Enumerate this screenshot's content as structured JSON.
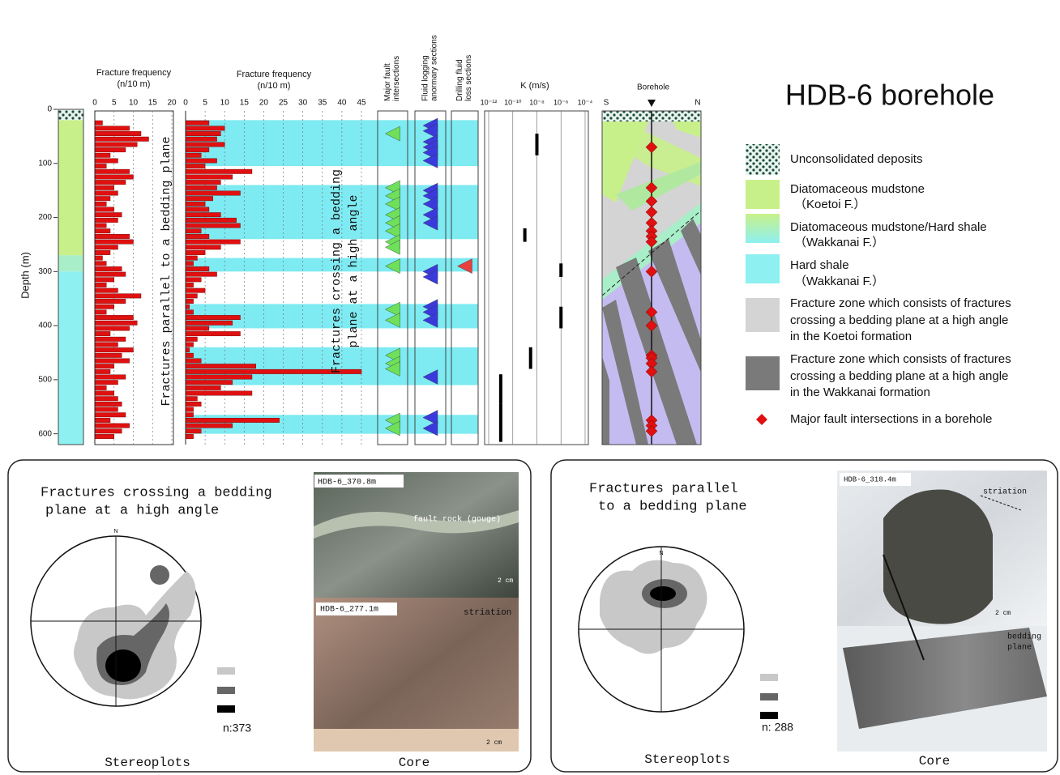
{
  "figure": {
    "title": "HDB-6 borehole",
    "depth_axis": {
      "label": "Depth (m)",
      "lim": [
        0,
        620
      ],
      "ticks": [
        0,
        100,
        200,
        300,
        400,
        500,
        600
      ]
    },
    "lithology": [
      {
        "top": 0,
        "bottom": 20,
        "color": "#2a6a5a"
      },
      {
        "top": 20,
        "bottom": 270,
        "color": "#c8f08a"
      },
      {
        "top": 270,
        "bottom": 300,
        "color": "#a8eec8"
      },
      {
        "top": 300,
        "bottom": 620,
        "color": "#8ef0f0"
      }
    ],
    "zones": {
      "color": "#7eeaf2",
      "ranges": [
        [
          20,
          105
        ],
        [
          140,
          240
        ],
        [
          275,
          300
        ],
        [
          360,
          405
        ],
        [
          440,
          510
        ],
        [
          565,
          600
        ]
      ]
    },
    "fracture_frequency": {
      "bins": [
        20,
        30,
        40,
        50,
        60,
        70,
        80,
        90,
        100,
        110,
        120,
        130,
        140,
        150,
        160,
        170,
        180,
        190,
        200,
        210,
        220,
        230,
        240,
        250,
        260,
        270,
        280,
        290,
        300,
        310,
        320,
        330,
        340,
        350,
        360,
        370,
        380,
        390,
        400,
        410,
        420,
        430,
        440,
        450,
        460,
        470,
        480,
        490,
        500,
        510,
        520,
        530,
        540,
        550,
        560,
        570,
        580,
        590,
        600,
        610
      ],
      "panels": [
        {
          "title": "Fracture frequency",
          "unit": "(n/10 m)",
          "xlim": [
            0,
            20
          ],
          "xticks": [
            0,
            5,
            10,
            15,
            20
          ],
          "color": "#e01010",
          "note": [
            "Fractures parallel to a bedding plane"
          ],
          "values": [
            2,
            9,
            12,
            14,
            11,
            8,
            4,
            6,
            3,
            9,
            10,
            8,
            5,
            6,
            4,
            3,
            5,
            7,
            6,
            3,
            4,
            9,
            10,
            6,
            4,
            2,
            3,
            7,
            8,
            5,
            3,
            6,
            12,
            8,
            5,
            3,
            10,
            11,
            9,
            4,
            8,
            6,
            10,
            7,
            9,
            5,
            4,
            8,
            6,
            3,
            5,
            6,
            7,
            6,
            8,
            4,
            9,
            7,
            5
          ]
        },
        {
          "title": "Fracture frequency",
          "unit": "(n/10 m)",
          "xlim": [
            0,
            45
          ],
          "xticks": [
            0,
            5,
            10,
            15,
            20,
            25,
            30,
            35,
            40,
            45
          ],
          "color": "#e01010",
          "note": [
            "Fractures crossing a bedding",
            "plane at a high angle"
          ],
          "values": [
            6,
            10,
            9,
            8,
            10,
            6,
            4,
            8,
            5,
            17,
            12,
            9,
            8,
            14,
            7,
            5,
            6,
            9,
            13,
            14,
            4,
            6,
            14,
            9,
            5,
            3,
            2,
            6,
            8,
            4,
            2,
            5,
            3,
            2,
            1,
            2,
            14,
            12,
            6,
            14,
            3,
            2,
            1,
            2,
            4,
            18,
            45,
            17,
            12,
            9,
            17,
            3,
            4,
            2,
            2,
            24,
            12,
            4,
            2
          ]
        }
      ]
    },
    "markers": [
      {
        "title": [
          "Major fault",
          "intersections"
        ],
        "color": "#6ee05a",
        "depths": [
          45,
          145,
          160,
          175,
          195,
          210,
          225,
          245,
          255,
          290,
          370,
          390,
          455,
          470,
          480,
          575,
          590
        ]
      },
      {
        "title": [
          "Fluid logging",
          "anormary sections"
        ],
        "color": "#3a3adc",
        "depths": [
          30,
          40,
          60,
          70,
          80,
          95,
          150,
          160,
          175,
          195,
          210,
          300,
          310,
          365,
          375,
          390,
          495,
          570,
          590
        ]
      },
      {
        "title": [
          "Drilling fluid",
          "loss sections"
        ],
        "color": "#e84040",
        "depths": [
          290
        ]
      }
    ],
    "conductivity": {
      "title": "K (m/s)",
      "log": true,
      "xlim": [
        1e-12,
        0.0001
      ],
      "xticks": [
        {
          "value": 1e-12,
          "label": "10⁻¹²"
        },
        {
          "value": 1e-10,
          "label": "10⁻¹⁰"
        },
        {
          "value": 1e-08,
          "label": "10⁻⁸"
        },
        {
          "value": 1e-06,
          "label": "10⁻⁶"
        },
        {
          "value": 0.0001,
          "label": "10⁻⁴"
        }
      ],
      "segments": [
        {
          "top": 45,
          "bottom": 85,
          "k": 1e-08
        },
        {
          "top": 220,
          "bottom": 245,
          "k": 1e-09
        },
        {
          "top": 285,
          "bottom": 310,
          "k": 1e-06
        },
        {
          "top": 365,
          "bottom": 405,
          "k": 1e-06
        },
        {
          "top": 440,
          "bottom": 480,
          "k": 3e-09
        },
        {
          "top": 490,
          "bottom": 545,
          "k": 1e-11
        },
        {
          "top": 545,
          "bottom": 615,
          "k": 1e-11
        }
      ]
    },
    "borehole": {
      "title": "Borehole",
      "left": "S",
      "right": "N",
      "fault_depths": [
        70,
        145,
        170,
        190,
        210,
        225,
        235,
        245,
        300,
        375,
        400,
        455,
        460,
        470,
        485,
        575,
        585,
        595
      ]
    },
    "legend": {
      "items": [
        {
          "lines": [
            "Unconsolidated deposits"
          ]
        },
        {
          "lines": [
            "Diatomaceous mudstone",
            "（Koetoi F.）"
          ]
        },
        {
          "lines": [
            "Diatomaceous mudstone/Hard shale",
            "（Wakkanai F.）"
          ]
        },
        {
          "lines": [
            "Hard shale",
            "（Wakkanai F.）"
          ]
        },
        {
          "lines": [
            "Fracture zone which consists of fractures",
            "crossing a bedding plane at a high angle",
            "in the Koetoi formation"
          ]
        },
        {
          "lines": [
            "Fracture zone which consists of fractures",
            "crossing a bedding plane at a high angle",
            "in the Wakkanai formation"
          ]
        },
        {
          "lines": [
            "Major fault intersections in a borehole"
          ]
        }
      ]
    },
    "panels": [
      {
        "heading": [
          "Fractures crossing a bedding",
          "plane at a high angle"
        ],
        "north": "N",
        "count": "n:373",
        "stereo_label": "Stereoplots",
        "core_label": "Core",
        "photos": [
          {
            "label": "HDB-6_370.8m",
            "notes": [
              "fault rock (gouge)",
              "2 cm"
            ]
          },
          {
            "label": "HDB-6_277.1m",
            "notes": [
              "striation",
              "2 cm"
            ]
          }
        ]
      },
      {
        "heading": [
          "Fractures parallel",
          "to a bedding plane"
        ],
        "north": "N",
        "count": "n: 288",
        "stereo_label": "Stereoplots",
        "core_label": "Core",
        "photos": [
          {
            "label": "HDB-6_318.4m",
            "notes": [
              "striation",
              "2 cm"
            ]
          },
          {
            "notes": [
              "bedding",
              "plane"
            ]
          }
        ]
      }
    ]
  }
}
